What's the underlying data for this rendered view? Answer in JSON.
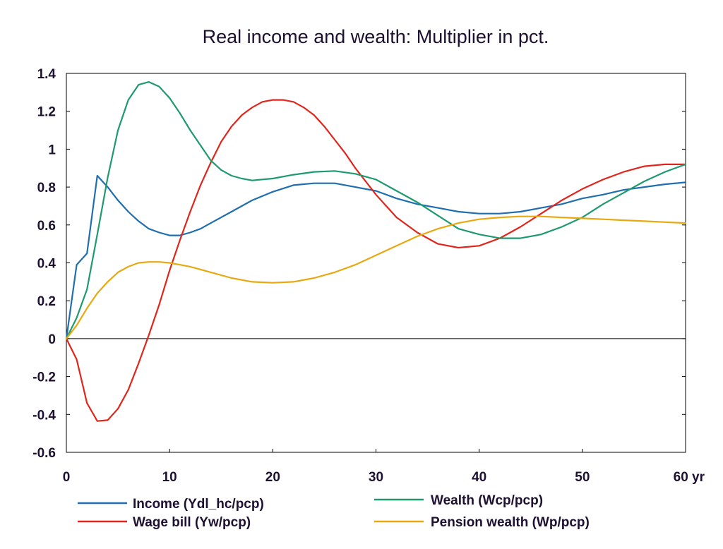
{
  "chart_data": {
    "type": "line",
    "title": "Real income and wealth: Multiplier in pct.",
    "xlabel": "",
    "ylabel": "",
    "x_unit_label": "yr",
    "xlim": [
      0,
      60
    ],
    "ylim": [
      -0.6,
      1.4
    ],
    "x_ticks": [
      0,
      10,
      20,
      30,
      40,
      50,
      60
    ],
    "x_tick_labels": [
      "0",
      "10",
      "20",
      "30",
      "40",
      "50",
      "60 yr"
    ],
    "y_ticks": [
      -0.6,
      -0.4,
      -0.2,
      0,
      0.2,
      0.4,
      0.6,
      0.8,
      1,
      1.2,
      1.4
    ],
    "y_tick_labels": [
      "-0.6",
      "-0.4",
      "-0.2",
      "0",
      "0.2",
      "0.4",
      "0.6",
      "0.8",
      "1",
      "1.2",
      "1.4"
    ],
    "grid": false,
    "legend_position": "bottom",
    "series": [
      {
        "name": "Income (Ydl_hc/pcp)",
        "color": "#1f6fb0",
        "points": [
          [
            0,
            0
          ],
          [
            1,
            0.39
          ],
          [
            2,
            0.45
          ],
          [
            3,
            0.86
          ],
          [
            4,
            0.8
          ],
          [
            5,
            0.73
          ],
          [
            6,
            0.67
          ],
          [
            7,
            0.62
          ],
          [
            8,
            0.58
          ],
          [
            9,
            0.56
          ],
          [
            10,
            0.545
          ],
          [
            11,
            0.545
          ],
          [
            12,
            0.56
          ],
          [
            13,
            0.58
          ],
          [
            14,
            0.61
          ],
          [
            16,
            0.67
          ],
          [
            18,
            0.73
          ],
          [
            20,
            0.775
          ],
          [
            22,
            0.81
          ],
          [
            24,
            0.82
          ],
          [
            26,
            0.82
          ],
          [
            28,
            0.8
          ],
          [
            30,
            0.78
          ],
          [
            32,
            0.74
          ],
          [
            34,
            0.71
          ],
          [
            36,
            0.69
          ],
          [
            38,
            0.67
          ],
          [
            40,
            0.66
          ],
          [
            42,
            0.66
          ],
          [
            44,
            0.67
          ],
          [
            46,
            0.69
          ],
          [
            48,
            0.71
          ],
          [
            50,
            0.74
          ],
          [
            52,
            0.76
          ],
          [
            54,
            0.785
          ],
          [
            56,
            0.8
          ],
          [
            58,
            0.815
          ],
          [
            60,
            0.825
          ]
        ]
      },
      {
        "name": "Wage bill (Yw/pcp)",
        "color": "#e0261c",
        "points": [
          [
            0,
            0
          ],
          [
            1,
            -0.11
          ],
          [
            2,
            -0.34
          ],
          [
            3,
            -0.435
          ],
          [
            4,
            -0.43
          ],
          [
            5,
            -0.37
          ],
          [
            6,
            -0.27
          ],
          [
            7,
            -0.13
          ],
          [
            8,
            0.02
          ],
          [
            9,
            0.18
          ],
          [
            10,
            0.36
          ],
          [
            11,
            0.52
          ],
          [
            12,
            0.67
          ],
          [
            13,
            0.81
          ],
          [
            14,
            0.93
          ],
          [
            15,
            1.04
          ],
          [
            16,
            1.12
          ],
          [
            17,
            1.18
          ],
          [
            18,
            1.22
          ],
          [
            19,
            1.25
          ],
          [
            20,
            1.26
          ],
          [
            21,
            1.26
          ],
          [
            22,
            1.25
          ],
          [
            23,
            1.22
          ],
          [
            24,
            1.18
          ],
          [
            25,
            1.12
          ],
          [
            26,
            1.05
          ],
          [
            27,
            0.98
          ],
          [
            28,
            0.9
          ],
          [
            29,
            0.83
          ],
          [
            30,
            0.76
          ],
          [
            31,
            0.7
          ],
          [
            32,
            0.64
          ],
          [
            34,
            0.56
          ],
          [
            36,
            0.5
          ],
          [
            38,
            0.48
          ],
          [
            40,
            0.49
          ],
          [
            42,
            0.53
          ],
          [
            44,
            0.59
          ],
          [
            46,
            0.66
          ],
          [
            48,
            0.73
          ],
          [
            50,
            0.79
          ],
          [
            52,
            0.84
          ],
          [
            54,
            0.88
          ],
          [
            56,
            0.91
          ],
          [
            58,
            0.92
          ],
          [
            60,
            0.92
          ]
        ]
      },
      {
        "name": "Wealth (Wcp/pcp)",
        "color": "#1f9a6e",
        "points": [
          [
            0,
            0
          ],
          [
            1,
            0.11
          ],
          [
            2,
            0.26
          ],
          [
            3,
            0.55
          ],
          [
            4,
            0.85
          ],
          [
            5,
            1.1
          ],
          [
            6,
            1.26
          ],
          [
            7,
            1.34
          ],
          [
            8,
            1.355
          ],
          [
            9,
            1.33
          ],
          [
            10,
            1.27
          ],
          [
            11,
            1.19
          ],
          [
            12,
            1.1
          ],
          [
            13,
            1.02
          ],
          [
            14,
            0.94
          ],
          [
            15,
            0.89
          ],
          [
            16,
            0.86
          ],
          [
            17,
            0.845
          ],
          [
            18,
            0.835
          ],
          [
            20,
            0.845
          ],
          [
            22,
            0.865
          ],
          [
            24,
            0.88
          ],
          [
            26,
            0.885
          ],
          [
            28,
            0.87
          ],
          [
            30,
            0.84
          ],
          [
            32,
            0.78
          ],
          [
            34,
            0.72
          ],
          [
            36,
            0.65
          ],
          [
            38,
            0.58
          ],
          [
            40,
            0.55
          ],
          [
            42,
            0.53
          ],
          [
            44,
            0.53
          ],
          [
            46,
            0.55
          ],
          [
            48,
            0.59
          ],
          [
            50,
            0.64
          ],
          [
            52,
            0.71
          ],
          [
            54,
            0.77
          ],
          [
            56,
            0.83
          ],
          [
            58,
            0.88
          ],
          [
            60,
            0.92
          ]
        ]
      },
      {
        "name": "Pension wealth (Wp/pcp)",
        "color": "#e8a810",
        "points": [
          [
            0,
            0
          ],
          [
            1,
            0.07
          ],
          [
            2,
            0.16
          ],
          [
            3,
            0.24
          ],
          [
            4,
            0.3
          ],
          [
            5,
            0.35
          ],
          [
            6,
            0.38
          ],
          [
            7,
            0.4
          ],
          [
            8,
            0.405
          ],
          [
            9,
            0.405
          ],
          [
            10,
            0.4
          ],
          [
            12,
            0.38
          ],
          [
            14,
            0.35
          ],
          [
            16,
            0.32
          ],
          [
            18,
            0.3
          ],
          [
            20,
            0.295
          ],
          [
            22,
            0.3
          ],
          [
            24,
            0.32
          ],
          [
            26,
            0.35
          ],
          [
            28,
            0.39
          ],
          [
            30,
            0.44
          ],
          [
            32,
            0.49
          ],
          [
            34,
            0.54
          ],
          [
            36,
            0.58
          ],
          [
            38,
            0.61
          ],
          [
            40,
            0.63
          ],
          [
            42,
            0.64
          ],
          [
            44,
            0.645
          ],
          [
            46,
            0.645
          ],
          [
            48,
            0.64
          ],
          [
            50,
            0.635
          ],
          [
            52,
            0.63
          ],
          [
            54,
            0.625
          ],
          [
            56,
            0.62
          ],
          [
            58,
            0.615
          ],
          [
            60,
            0.61
          ]
        ]
      }
    ]
  }
}
